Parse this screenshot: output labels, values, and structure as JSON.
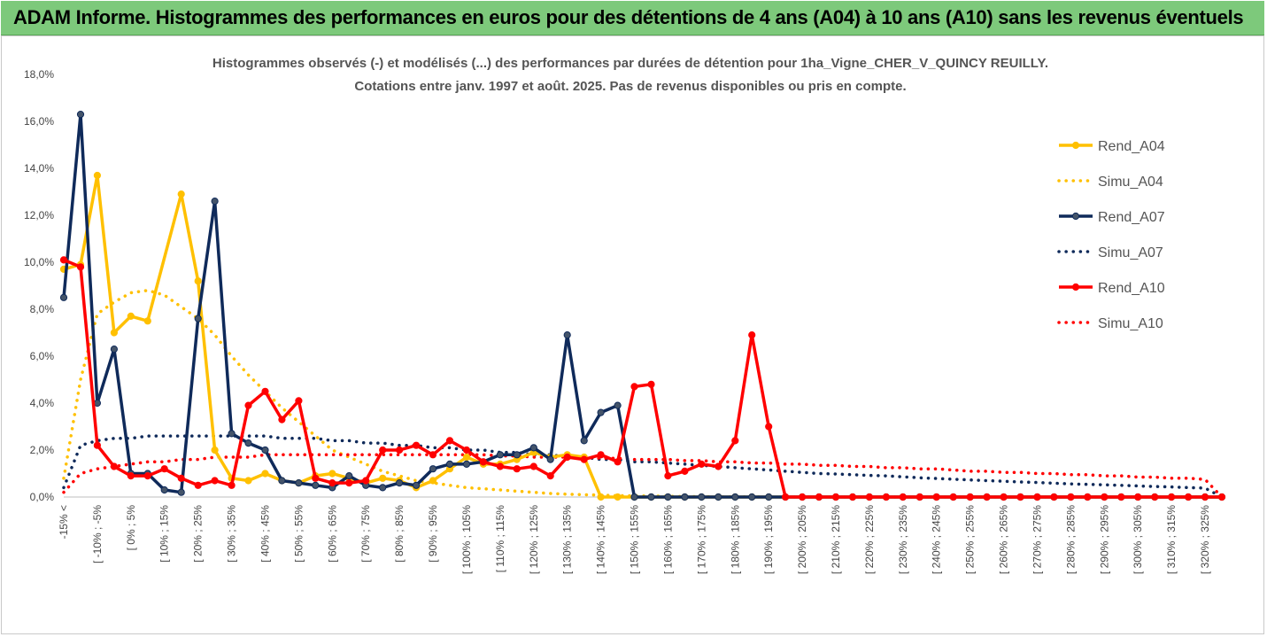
{
  "header": {
    "title": "ADAM Informe. Histogrammes des performances en euros pour des détentions de 4 ans (A04) à 10 ans (A10) sans les revenus éventuels"
  },
  "chart_data": {
    "type": "line",
    "title": "Histogrammes observés (-) et modélisés (...)  des performances par durées de détention pour 1ha_Vigne_CHER_V_QUINCY REUILLY.",
    "subtitle": "Cotations entre janv. 1997 et août. 2025. Pas de revenus disponibles ou pris en compte.",
    "ylim": [
      0,
      18
    ],
    "yticks": [
      "0,0%",
      "2,0%",
      "4,0%",
      "6,0%",
      "8,0%",
      "10,0%",
      "12,0%",
      "14,0%",
      "16,0%",
      "18,0%"
    ],
    "x_labels_shown": [
      "-15% <",
      "[ -10% ; -5%",
      "[ 0% ; 5%",
      "[ 10% ; 15%",
      "[ 20% ; 25%",
      "[ 30% ; 35%",
      "[ 40% ; 45%",
      "[ 50% ; 55%",
      "[ 60% ; 65%",
      "[ 70% ; 75%",
      "[ 80% ; 85%",
      "[ 90% ; 95%",
      "[ 100% ; 105%",
      "[ 110% ; 115%",
      "[ 120% ; 125%",
      "[ 130% ; 135%",
      "[ 140% ; 145%",
      "[ 150% ; 155%",
      "[ 160% ; 165%",
      "[ 170% ; 175%",
      "[ 180% ; 185%",
      "[ 190% ; 195%",
      "[ 200% ; 205%",
      "[ 210% ; 215%",
      "[ 220% ; 225%",
      "[ 230% ; 235%",
      "[ 240% ; 245%",
      "[ 250% ; 255%",
      "[ 260% ; 265%",
      "[ 270% ; 275%",
      "[ 280% ; 285%",
      "[ 290% ; 295%",
      "[ 300% ; 305%",
      "[ 310% ; 315%",
      "[ 320% ; 325%"
    ],
    "n_bins": 70,
    "grid": false,
    "legend_position": "right",
    "series": [
      {
        "name": "Rend_A04",
        "style": "solid",
        "color": "#FFC000",
        "values": [
          9.7,
          9.9,
          13.7,
          7.0,
          7.7,
          7.5,
          null,
          12.9,
          9.2,
          2.0,
          0.8,
          0.7,
          1.0,
          0.7,
          0.6,
          0.9,
          1.0,
          0.8,
          0.6,
          0.8,
          0.7,
          0.4,
          0.7,
          1.2,
          1.7,
          1.4,
          1.4,
          1.6,
          1.9,
          1.7,
          1.8,
          1.7,
          0.0,
          0.0,
          0.0,
          0.0,
          0.0,
          0.0,
          0.0,
          0.0,
          0.0,
          0.0,
          0.0,
          0.0,
          0.0,
          0.0,
          0.0,
          0.0,
          0.0,
          0.0,
          0.0,
          0.0,
          0.0,
          0.0,
          0.0,
          0.0,
          0.0,
          0.0,
          0.0,
          0.0,
          0.0,
          0.0,
          0.0,
          0.0,
          0.0,
          0.0,
          0.0,
          0.0,
          0.0,
          0.0
        ]
      },
      {
        "name": "Simu_A04",
        "style": "dotted",
        "color": "#FFC000",
        "values": [
          0.8,
          5.0,
          7.8,
          8.3,
          8.7,
          8.8,
          8.6,
          8.1,
          7.6,
          6.9,
          6.0,
          5.2,
          4.5,
          3.8,
          3.2,
          2.6,
          2.0,
          1.7,
          1.4,
          1.1,
          0.9,
          0.7,
          0.6,
          0.5,
          0.4,
          0.35,
          0.3,
          0.25,
          0.2,
          0.15,
          0.12,
          0.1,
          0.08,
          0.06,
          0.05,
          0.04,
          0.03,
          0.02,
          0.02,
          0.01,
          0.01,
          0.01,
          0.0,
          0.0,
          0.0,
          0.0,
          0.0,
          0.0,
          0.0,
          0.0,
          0.0,
          0.0,
          0.0,
          0.0,
          0.0,
          0.0,
          0.0,
          0.0,
          0.0,
          0.0,
          0.0,
          0.0,
          0.0,
          0.0,
          0.0,
          0.0,
          0.0,
          0.0,
          0.0,
          0.0
        ]
      },
      {
        "name": "Rend_A07",
        "style": "solid",
        "color": "#0F2A5A",
        "values": [
          8.5,
          16.3,
          4.0,
          6.3,
          1.0,
          1.0,
          0.3,
          0.2,
          7.6,
          12.6,
          2.7,
          2.3,
          2.0,
          0.7,
          0.6,
          0.5,
          0.4,
          0.9,
          0.5,
          0.4,
          0.6,
          0.5,
          1.2,
          1.4,
          1.4,
          1.5,
          1.8,
          1.8,
          2.1,
          1.6,
          6.9,
          2.4,
          3.6,
          3.9,
          0.0,
          0.0,
          0.0,
          0.0,
          0.0,
          0.0,
          0.0,
          0.0,
          0.0,
          0.0,
          0.0,
          0.0,
          0.0,
          0.0,
          0.0,
          0.0,
          0.0,
          0.0,
          0.0,
          0.0,
          0.0,
          0.0,
          0.0,
          0.0,
          0.0,
          0.0,
          0.0,
          0.0,
          0.0,
          0.0,
          0.0,
          0.0,
          0.0,
          0.0,
          0.0,
          0.0
        ]
      },
      {
        "name": "Simu_A07",
        "style": "dotted",
        "color": "#0F2A5A",
        "values": [
          0.4,
          2.2,
          2.4,
          2.5,
          2.5,
          2.6,
          2.6,
          2.6,
          2.6,
          2.6,
          2.6,
          2.6,
          2.6,
          2.5,
          2.5,
          2.5,
          2.4,
          2.4,
          2.3,
          2.3,
          2.2,
          2.2,
          2.1,
          2.1,
          2.0,
          2.0,
          1.9,
          1.9,
          1.8,
          1.8,
          1.7,
          1.7,
          1.6,
          1.6,
          1.5,
          1.5,
          1.45,
          1.4,
          1.35,
          1.3,
          1.25,
          1.2,
          1.15,
          1.1,
          1.05,
          1.0,
          0.98,
          0.95,
          0.92,
          0.9,
          0.86,
          0.82,
          0.79,
          0.76,
          0.73,
          0.7,
          0.67,
          0.64,
          0.62,
          0.59,
          0.56,
          0.54,
          0.52,
          0.5,
          0.47,
          0.45,
          0.43,
          0.4,
          0.38,
          0.0
        ]
      },
      {
        "name": "Rend_A10",
        "style": "solid",
        "color": "#FF0000",
        "values": [
          10.1,
          9.8,
          2.2,
          1.3,
          0.9,
          0.9,
          1.2,
          0.8,
          0.5,
          0.7,
          0.5,
          3.9,
          4.5,
          3.3,
          4.1,
          0.8,
          0.6,
          0.6,
          0.7,
          2.0,
          2.0,
          2.2,
          1.8,
          2.4,
          2.0,
          1.5,
          1.3,
          1.2,
          1.3,
          0.9,
          1.7,
          1.6,
          1.8,
          1.5,
          4.7,
          4.8,
          0.9,
          1.1,
          1.4,
          1.3,
          2.4,
          6.9,
          3.0,
          0.0,
          0.0,
          0.0,
          0.0,
          0.0,
          0.0,
          0.0,
          0.0,
          0.0,
          0.0,
          0.0,
          0.0,
          0.0,
          0.0,
          0.0,
          0.0,
          0.0,
          0.0,
          0.0,
          0.0,
          0.0,
          0.0,
          0.0,
          0.0,
          0.0,
          0.0,
          0.0
        ]
      },
      {
        "name": "Simu_A10",
        "style": "dotted",
        "color": "#FF0000",
        "values": [
          0.2,
          1.0,
          1.2,
          1.3,
          1.4,
          1.5,
          1.5,
          1.6,
          1.6,
          1.7,
          1.7,
          1.7,
          1.8,
          1.8,
          1.8,
          1.8,
          1.8,
          1.8,
          1.8,
          1.8,
          1.8,
          1.8,
          1.8,
          1.8,
          1.8,
          1.8,
          1.75,
          1.75,
          1.7,
          1.7,
          1.7,
          1.7,
          1.65,
          1.65,
          1.6,
          1.6,
          1.6,
          1.55,
          1.55,
          1.5,
          1.5,
          1.45,
          1.45,
          1.4,
          1.4,
          1.35,
          1.35,
          1.3,
          1.3,
          1.25,
          1.25,
          1.2,
          1.2,
          1.15,
          1.1,
          1.1,
          1.05,
          1.05,
          1.0,
          1.0,
          0.95,
          0.95,
          0.9,
          0.9,
          0.85,
          0.85,
          0.8,
          0.8,
          0.75,
          0.0
        ]
      }
    ]
  }
}
